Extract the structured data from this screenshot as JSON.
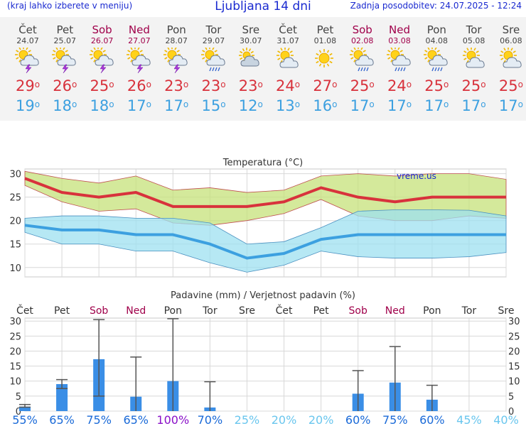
{
  "header": {
    "menu_hint": "(kraj lahko izberete v meniju)",
    "title": "Ljubljana 14 dni",
    "updated": "Zadnja posodobitev: 24.07.2025 - 12:24"
  },
  "colors": {
    "header_text": "#1a2ad0",
    "weekend": "#a0004a",
    "tmax": "#d8323c",
    "tmin": "#3ca0e0",
    "band_max": "#c6e27a",
    "band_min": "#9ee0f0",
    "bar": "#3a8ee6"
  },
  "days": [
    {
      "name": "Čet",
      "date": "24.07",
      "weekend": false,
      "icon": "sun-cloud-thunder-icon",
      "tmax": "29",
      "tmin": "19"
    },
    {
      "name": "Pet",
      "date": "25.07",
      "weekend": false,
      "icon": "sun-cloud-thunder-icon",
      "tmax": "26",
      "tmin": "18"
    },
    {
      "name": "Sob",
      "date": "26.07",
      "weekend": true,
      "icon": "sun-cloud-thunder-icon",
      "tmax": "25",
      "tmin": "18"
    },
    {
      "name": "Ned",
      "date": "27.07",
      "weekend": true,
      "icon": "sun-cloud-thunder-icon",
      "tmax": "26",
      "tmin": "17"
    },
    {
      "name": "Pon",
      "date": "28.07",
      "weekend": false,
      "icon": "sun-cloud-thunder-icon",
      "tmax": "23",
      "tmin": "17"
    },
    {
      "name": "Tor",
      "date": "29.07",
      "weekend": false,
      "icon": "sun-cloud-rain-icon",
      "tmax": "23",
      "tmin": "15"
    },
    {
      "name": "Sre",
      "date": "30.07",
      "weekend": false,
      "icon": "cloud-icon",
      "tmax": "23",
      "tmin": "12"
    },
    {
      "name": "Čet",
      "date": "31.07",
      "weekend": false,
      "icon": "sun-cloud-icon",
      "tmax": "24",
      "tmin": "13"
    },
    {
      "name": "Pet",
      "date": "01.08",
      "weekend": false,
      "icon": "sun-icon",
      "tmax": "27",
      "tmin": "16"
    },
    {
      "name": "Sob",
      "date": "02.08",
      "weekend": true,
      "icon": "sun-cloud-rain-icon",
      "tmax": "25",
      "tmin": "17"
    },
    {
      "name": "Ned",
      "date": "03.08",
      "weekend": true,
      "icon": "sun-cloud-rain-icon",
      "tmax": "24",
      "tmin": "17"
    },
    {
      "name": "Pon",
      "date": "04.08",
      "weekend": false,
      "icon": "sun-cloud-rain-icon",
      "tmax": "25",
      "tmin": "17"
    },
    {
      "name": "Tor",
      "date": "05.08",
      "weekend": false,
      "icon": "sun-cloud-icon",
      "tmax": "25",
      "tmin": "17"
    },
    {
      "name": "Sre",
      "date": "06.08",
      "weekend": false,
      "icon": "sun-cloud-icon",
      "tmax": "25",
      "tmin": "17"
    }
  ],
  "chart_data": [
    {
      "type": "line",
      "title": "Temperatura (°C)",
      "watermark": "vreme.us",
      "x": [
        "24.07",
        "25.07",
        "26.07",
        "27.07",
        "28.07",
        "29.07",
        "30.07",
        "31.07",
        "01.08",
        "02.08",
        "03.08",
        "04.08",
        "05.08",
        "06.08"
      ],
      "ylim": [
        8,
        31
      ],
      "yticks": [
        10,
        15,
        20,
        25,
        30
      ],
      "grid": true,
      "series": [
        {
          "values": [
            29,
            26,
            25,
            26,
            23,
            23,
            23,
            24,
            27,
            25,
            24,
            25,
            25,
            25
          ]
        },
        {
          "values": [
            30.5,
            29,
            28,
            29.5,
            26.5,
            27,
            26,
            26.5,
            29.5,
            30,
            29.5,
            30,
            30,
            28.8
          ]
        },
        {
          "values": [
            27.5,
            24,
            22,
            22.5,
            19.5,
            19,
            20,
            21.5,
            24.5,
            21,
            20,
            20,
            21,
            20.5
          ]
        },
        {
          "values": [
            19,
            18,
            18,
            17,
            17,
            15,
            12,
            13,
            16,
            17,
            17,
            17,
            17,
            17
          ]
        },
        {
          "values": [
            20.5,
            21,
            21,
            20.5,
            20.5,
            19.5,
            15,
            15.5,
            18.5,
            22,
            22.3,
            22.3,
            22.2,
            21
          ]
        },
        {
          "values": [
            17.5,
            15,
            15,
            13.5,
            13.5,
            11,
            9,
            10.5,
            13.5,
            12.3,
            12,
            12,
            12.3,
            13.2
          ]
        }
      ]
    },
    {
      "type": "bar",
      "title": "Padavine (mm) / Verjetnost padavin (%)",
      "categories": [
        "Čet",
        "Pet",
        "Sob",
        "Ned",
        "Pon",
        "Tor",
        "Sre",
        "Čet",
        "Pet",
        "Sob",
        "Ned",
        "Pon",
        "Tor",
        "Sre"
      ],
      "weekend": [
        false,
        false,
        true,
        true,
        false,
        false,
        false,
        false,
        false,
        true,
        true,
        false,
        false,
        false
      ],
      "ylim": [
        0,
        31
      ],
      "yticks": [
        0,
        5,
        10,
        15,
        20,
        25,
        30
      ],
      "values": [
        1.5,
        9,
        17.3,
        4.8,
        10,
        1.2,
        0,
        0,
        0,
        5.8,
        9.5,
        3.8,
        0,
        0
      ],
      "error_low": [
        1.3,
        7.5,
        5,
        null,
        null,
        null,
        null,
        null,
        null,
        null,
        null,
        null,
        null,
        null
      ],
      "error_high": [
        2.2,
        10.5,
        30.5,
        18,
        30.8,
        9.8,
        null,
        null,
        null,
        13.5,
        21.5,
        8.6,
        null,
        null
      ],
      "probability": [
        "55%",
        "65%",
        "75%",
        "65%",
        "100%",
        "70%",
        "25%",
        "20%",
        "20%",
        "60%",
        "75%",
        "60%",
        "45%",
        "40%"
      ],
      "probability_colors": [
        "#1a6ad8",
        "#1a6ad8",
        "#1a6ad8",
        "#1a6ad8",
        "#8a10c8",
        "#1a6ad8",
        "#6ac6ee",
        "#6ac6ee",
        "#6ac6ee",
        "#1a6ad8",
        "#1a6ad8",
        "#1a6ad8",
        "#6ac6ee",
        "#6ac6ee"
      ]
    }
  ]
}
